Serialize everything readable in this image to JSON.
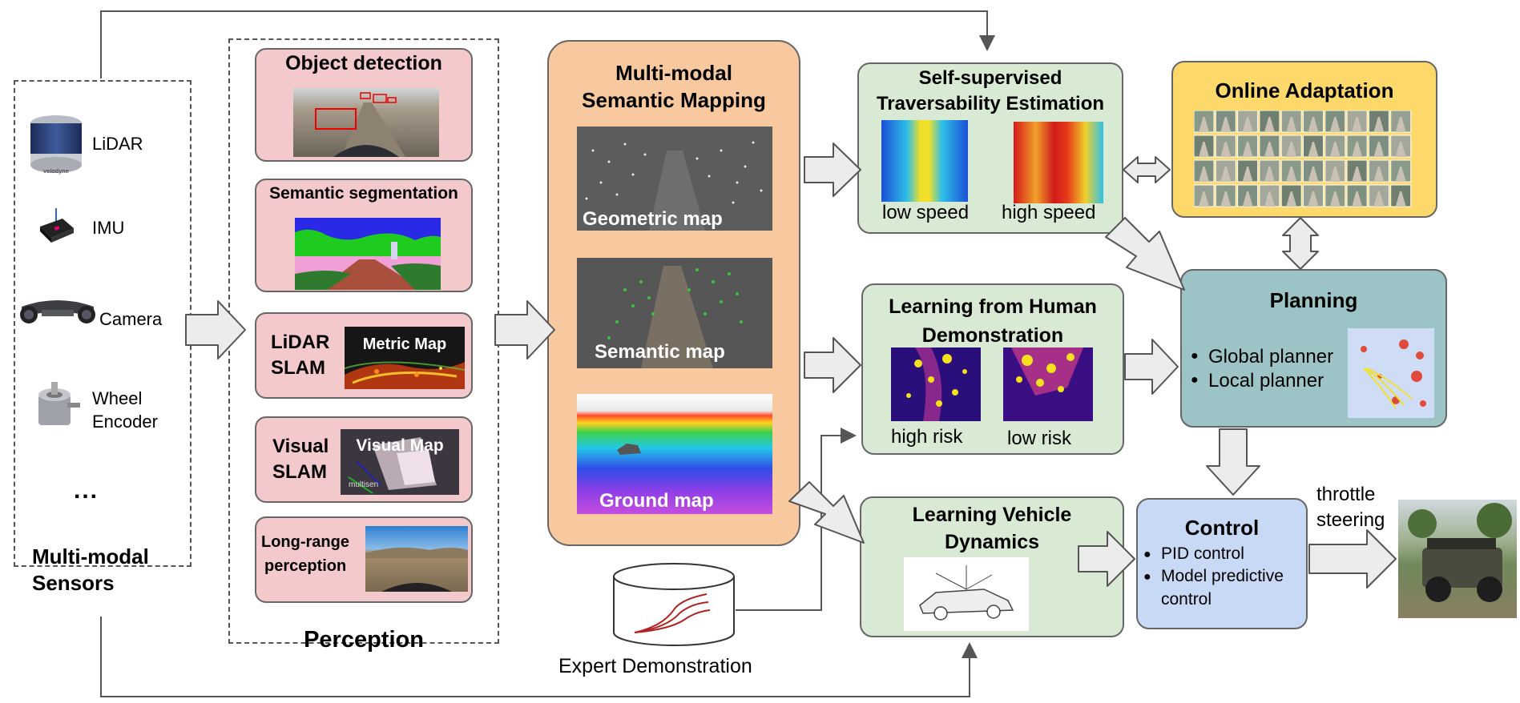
{
  "sensors": {
    "items": [
      "LiDAR",
      "IMU",
      "Camera",
      "Wheel Encoder"
    ],
    "wheel_line1": "Wheel",
    "wheel_line2": "Encoder",
    "ellipsis": "...",
    "title_line1": "Multi-modal",
    "title_line2": "Sensors",
    "lidar_brand": "velodyne"
  },
  "perception": {
    "title": "Perception",
    "object_detection": "Object detection",
    "semantic_segmentation": "Semantic segmentation",
    "lidar_slam_1": "LiDAR",
    "lidar_slam_2": "SLAM",
    "metric_map": "Metric Map",
    "visual_slam_1": "Visual",
    "visual_slam_2": "SLAM",
    "visual_map": "Visual Map",
    "visual_watermark": "multisen",
    "long_range_1": "Long-range",
    "long_range_2": "perception"
  },
  "mapping": {
    "title_line1": "Multi-modal",
    "title_line2": "Semantic Mapping",
    "geometric": "Geometric map",
    "semantic": "Semantic map",
    "ground": "Ground map"
  },
  "traversability": {
    "title_line1": "Self-supervised",
    "title_line2": "Traversability Estimation",
    "low_speed": "low speed",
    "high_speed": "high speed"
  },
  "adaptation": {
    "title": "Online Adaptation"
  },
  "human_demo": {
    "title_line1": "Learning from Human",
    "title_line2": "Demonstration",
    "high_risk": "high risk",
    "low_risk": "low risk"
  },
  "planning": {
    "title": "Planning",
    "items": [
      "Global planner",
      "Local planner"
    ]
  },
  "dynamics": {
    "title_line1": "Learning Vehicle",
    "title_line2": "Dynamics"
  },
  "expert": {
    "label": "Expert Demonstration"
  },
  "control": {
    "title": "Control",
    "item1": "PID control",
    "item2_line1": "Model predictive",
    "item2_line2": "control"
  },
  "output": {
    "throttle": "throttle",
    "steering": "steering"
  },
  "colors": {
    "pink": "#f4c9cc",
    "green": "#d8ead3",
    "orange": "#f8c89f",
    "yellow": "#fdd86b",
    "teal": "#9cc3c6",
    "blue": "#c7d9f5",
    "arrow_fill": "#ececec"
  }
}
